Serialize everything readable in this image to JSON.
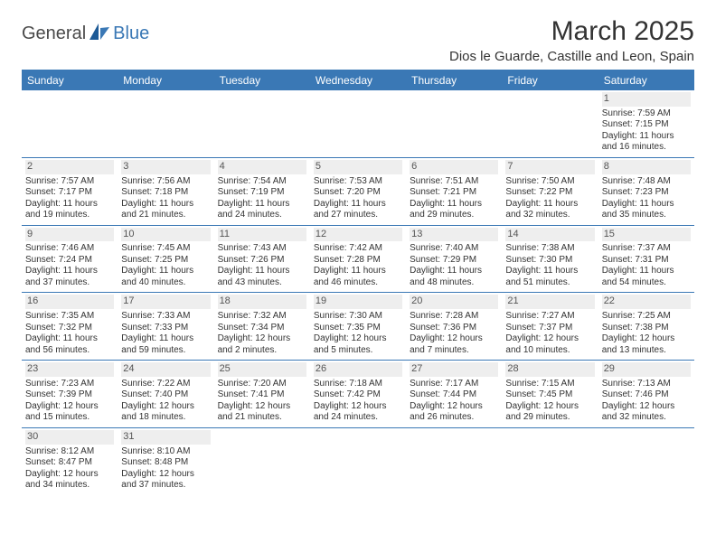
{
  "header": {
    "logo": {
      "part1": "General",
      "part2": "Blue"
    },
    "title": "March 2025",
    "location": "Dios le Guarde, Castille and Leon, Spain"
  },
  "colors": {
    "brand_blue": "#3a78b5",
    "header_text": "#ffffff",
    "daynum_bg": "#eeeeee",
    "text": "#333333",
    "logo_gray": "#4a4a4a"
  },
  "typography": {
    "title_fontsize": 30,
    "location_fontsize": 15,
    "th_fontsize": 12,
    "cell_fontsize": 10,
    "daynum_fontsize": 11
  },
  "calendar": {
    "day_headers": [
      "Sunday",
      "Monday",
      "Tuesday",
      "Wednesday",
      "Thursday",
      "Friday",
      "Saturday"
    ],
    "weeks": [
      [
        null,
        null,
        null,
        null,
        null,
        null,
        {
          "day": "1",
          "sunrise": "Sunrise: 7:59 AM",
          "sunset": "Sunset: 7:15 PM",
          "daylight": "Daylight: 11 hours and 16 minutes."
        }
      ],
      [
        {
          "day": "2",
          "sunrise": "Sunrise: 7:57 AM",
          "sunset": "Sunset: 7:17 PM",
          "daylight": "Daylight: 11 hours and 19 minutes."
        },
        {
          "day": "3",
          "sunrise": "Sunrise: 7:56 AM",
          "sunset": "Sunset: 7:18 PM",
          "daylight": "Daylight: 11 hours and 21 minutes."
        },
        {
          "day": "4",
          "sunrise": "Sunrise: 7:54 AM",
          "sunset": "Sunset: 7:19 PM",
          "daylight": "Daylight: 11 hours and 24 minutes."
        },
        {
          "day": "5",
          "sunrise": "Sunrise: 7:53 AM",
          "sunset": "Sunset: 7:20 PM",
          "daylight": "Daylight: 11 hours and 27 minutes."
        },
        {
          "day": "6",
          "sunrise": "Sunrise: 7:51 AM",
          "sunset": "Sunset: 7:21 PM",
          "daylight": "Daylight: 11 hours and 29 minutes."
        },
        {
          "day": "7",
          "sunrise": "Sunrise: 7:50 AM",
          "sunset": "Sunset: 7:22 PM",
          "daylight": "Daylight: 11 hours and 32 minutes."
        },
        {
          "day": "8",
          "sunrise": "Sunrise: 7:48 AM",
          "sunset": "Sunset: 7:23 PM",
          "daylight": "Daylight: 11 hours and 35 minutes."
        }
      ],
      [
        {
          "day": "9",
          "sunrise": "Sunrise: 7:46 AM",
          "sunset": "Sunset: 7:24 PM",
          "daylight": "Daylight: 11 hours and 37 minutes."
        },
        {
          "day": "10",
          "sunrise": "Sunrise: 7:45 AM",
          "sunset": "Sunset: 7:25 PM",
          "daylight": "Daylight: 11 hours and 40 minutes."
        },
        {
          "day": "11",
          "sunrise": "Sunrise: 7:43 AM",
          "sunset": "Sunset: 7:26 PM",
          "daylight": "Daylight: 11 hours and 43 minutes."
        },
        {
          "day": "12",
          "sunrise": "Sunrise: 7:42 AM",
          "sunset": "Sunset: 7:28 PM",
          "daylight": "Daylight: 11 hours and 46 minutes."
        },
        {
          "day": "13",
          "sunrise": "Sunrise: 7:40 AM",
          "sunset": "Sunset: 7:29 PM",
          "daylight": "Daylight: 11 hours and 48 minutes."
        },
        {
          "day": "14",
          "sunrise": "Sunrise: 7:38 AM",
          "sunset": "Sunset: 7:30 PM",
          "daylight": "Daylight: 11 hours and 51 minutes."
        },
        {
          "day": "15",
          "sunrise": "Sunrise: 7:37 AM",
          "sunset": "Sunset: 7:31 PM",
          "daylight": "Daylight: 11 hours and 54 minutes."
        }
      ],
      [
        {
          "day": "16",
          "sunrise": "Sunrise: 7:35 AM",
          "sunset": "Sunset: 7:32 PM",
          "daylight": "Daylight: 11 hours and 56 minutes."
        },
        {
          "day": "17",
          "sunrise": "Sunrise: 7:33 AM",
          "sunset": "Sunset: 7:33 PM",
          "daylight": "Daylight: 11 hours and 59 minutes."
        },
        {
          "day": "18",
          "sunrise": "Sunrise: 7:32 AM",
          "sunset": "Sunset: 7:34 PM",
          "daylight": "Daylight: 12 hours and 2 minutes."
        },
        {
          "day": "19",
          "sunrise": "Sunrise: 7:30 AM",
          "sunset": "Sunset: 7:35 PM",
          "daylight": "Daylight: 12 hours and 5 minutes."
        },
        {
          "day": "20",
          "sunrise": "Sunrise: 7:28 AM",
          "sunset": "Sunset: 7:36 PM",
          "daylight": "Daylight: 12 hours and 7 minutes."
        },
        {
          "day": "21",
          "sunrise": "Sunrise: 7:27 AM",
          "sunset": "Sunset: 7:37 PM",
          "daylight": "Daylight: 12 hours and 10 minutes."
        },
        {
          "day": "22",
          "sunrise": "Sunrise: 7:25 AM",
          "sunset": "Sunset: 7:38 PM",
          "daylight": "Daylight: 12 hours and 13 minutes."
        }
      ],
      [
        {
          "day": "23",
          "sunrise": "Sunrise: 7:23 AM",
          "sunset": "Sunset: 7:39 PM",
          "daylight": "Daylight: 12 hours and 15 minutes."
        },
        {
          "day": "24",
          "sunrise": "Sunrise: 7:22 AM",
          "sunset": "Sunset: 7:40 PM",
          "daylight": "Daylight: 12 hours and 18 minutes."
        },
        {
          "day": "25",
          "sunrise": "Sunrise: 7:20 AM",
          "sunset": "Sunset: 7:41 PM",
          "daylight": "Daylight: 12 hours and 21 minutes."
        },
        {
          "day": "26",
          "sunrise": "Sunrise: 7:18 AM",
          "sunset": "Sunset: 7:42 PM",
          "daylight": "Daylight: 12 hours and 24 minutes."
        },
        {
          "day": "27",
          "sunrise": "Sunrise: 7:17 AM",
          "sunset": "Sunset: 7:44 PM",
          "daylight": "Daylight: 12 hours and 26 minutes."
        },
        {
          "day": "28",
          "sunrise": "Sunrise: 7:15 AM",
          "sunset": "Sunset: 7:45 PM",
          "daylight": "Daylight: 12 hours and 29 minutes."
        },
        {
          "day": "29",
          "sunrise": "Sunrise: 7:13 AM",
          "sunset": "Sunset: 7:46 PM",
          "daylight": "Daylight: 12 hours and 32 minutes."
        }
      ],
      [
        {
          "day": "30",
          "sunrise": "Sunrise: 8:12 AM",
          "sunset": "Sunset: 8:47 PM",
          "daylight": "Daylight: 12 hours and 34 minutes."
        },
        {
          "day": "31",
          "sunrise": "Sunrise: 8:10 AM",
          "sunset": "Sunset: 8:48 PM",
          "daylight": "Daylight: 12 hours and 37 minutes."
        },
        null,
        null,
        null,
        null,
        null
      ]
    ]
  }
}
